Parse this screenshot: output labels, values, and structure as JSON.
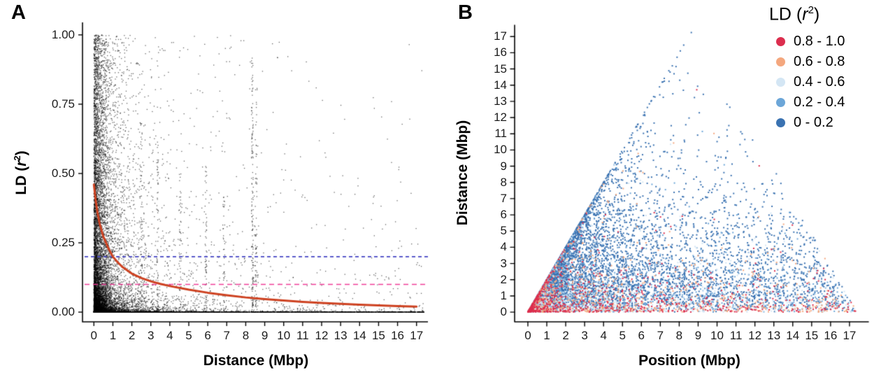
{
  "figure": {
    "background": "#ffffff",
    "panels": [
      {
        "letter": "A"
      },
      {
        "letter": "B"
      }
    ]
  },
  "chart_data": [
    {
      "id": "A",
      "type": "scatter",
      "xlabel": "Distance (Mbp)",
      "ylabel_parts": {
        "prefix": "LD (",
        "var": "r",
        "sup": "2",
        "suffix": ")"
      },
      "xlim": [
        0,
        17
      ],
      "ylim": [
        0,
        1
      ],
      "grid": false,
      "xticks": [
        "0",
        "1",
        "2",
        "3",
        "4",
        "5",
        "6",
        "7",
        "8",
        "9",
        "10",
        "11",
        "12",
        "13",
        "14",
        "15",
        "16",
        "17"
      ],
      "yticks": [
        "0.00",
        "0.25",
        "0.50",
        "0.75",
        "1.00"
      ],
      "point_color": "#000000",
      "decay_curve": {
        "color": "#cd4120",
        "points": [
          [
            0,
            0.46
          ],
          [
            0.1,
            0.4
          ],
          [
            0.2,
            0.355
          ],
          [
            0.3,
            0.32
          ],
          [
            0.5,
            0.272
          ],
          [
            0.75,
            0.232
          ],
          [
            1,
            0.2
          ],
          [
            1.25,
            0.18
          ],
          [
            1.5,
            0.163
          ],
          [
            2,
            0.139
          ],
          [
            2.5,
            0.123
          ],
          [
            3,
            0.111
          ],
          [
            3.5,
            0.102
          ],
          [
            4,
            0.094
          ],
          [
            5,
            0.081
          ],
          [
            6,
            0.07
          ],
          [
            7,
            0.061
          ],
          [
            8,
            0.053
          ],
          [
            9,
            0.047
          ],
          [
            10,
            0.042
          ],
          [
            11,
            0.037
          ],
          [
            12,
            0.033
          ],
          [
            13,
            0.03
          ],
          [
            14,
            0.027
          ],
          [
            15,
            0.024
          ],
          [
            16,
            0.022
          ],
          [
            17,
            0.02
          ]
        ]
      },
      "hlines": [
        {
          "y": 0.2,
          "color": "#4444c4",
          "style": "dashed"
        },
        {
          "y": 0.1,
          "color": "#ef3d98",
          "style": "dashed"
        }
      ],
      "cloud_model": {
        "seed": 1337,
        "n": 15000,
        "streaks": [
          {
            "x": 8.35,
            "n": 150,
            "ymax": 0.92
          },
          {
            "x": 8.55,
            "n": 70,
            "ymax": 0.82
          },
          {
            "x": 5.9,
            "n": 55,
            "ymax": 0.55
          },
          {
            "x": 3.35,
            "n": 60,
            "ymax": 0.62
          },
          {
            "x": 4.55,
            "n": 45,
            "ymax": 0.5
          },
          {
            "x": 6.85,
            "n": 40,
            "ymax": 0.42
          },
          {
            "x": 2.5,
            "n": 60,
            "ymax": 0.7
          }
        ]
      }
    },
    {
      "id": "B",
      "type": "scatter",
      "xlabel": "Position (Mbp)",
      "ylabel": "Distance (Mbp)",
      "xlim": [
        0,
        17
      ],
      "ylim": [
        0,
        17
      ],
      "grid": false,
      "xticks": [
        "0",
        "1",
        "2",
        "3",
        "4",
        "5",
        "6",
        "7",
        "8",
        "9",
        "10",
        "11",
        "12",
        "13",
        "14",
        "15",
        "16",
        "17"
      ],
      "yticks": [
        "0",
        "1",
        "2",
        "3",
        "4",
        "5",
        "6",
        "7",
        "8",
        "9",
        "10",
        "11",
        "12",
        "13",
        "14",
        "15",
        "16",
        "17"
      ],
      "legend": {
        "title_prefix": "LD (",
        "title_var": "r",
        "title_sup": "2",
        "title_suffix": ")",
        "entries": [
          {
            "label": "0.8 - 1.0",
            "color": "#dc2e4e",
            "range": [
              0.8,
              1.0
            ]
          },
          {
            "label": "0.6 - 0.8",
            "color": "#f4a77e",
            "range": [
              0.6,
              0.8
            ]
          },
          {
            "label": "0.4 - 0.6",
            "color": "#d4e6f4",
            "range": [
              0.4,
              0.6
            ]
          },
          {
            "label": "0.2 - 0.4",
            "color": "#6ca6d8",
            "range": [
              0.2,
              0.4
            ]
          },
          {
            "label": "0 - 0.2",
            "color": "#3a72b1",
            "range": [
              0,
              0.2
            ]
          }
        ]
      },
      "cloud_model": {
        "seed": 2024,
        "n": 9500,
        "chrom_length_mbp": 17.4
      }
    }
  ]
}
